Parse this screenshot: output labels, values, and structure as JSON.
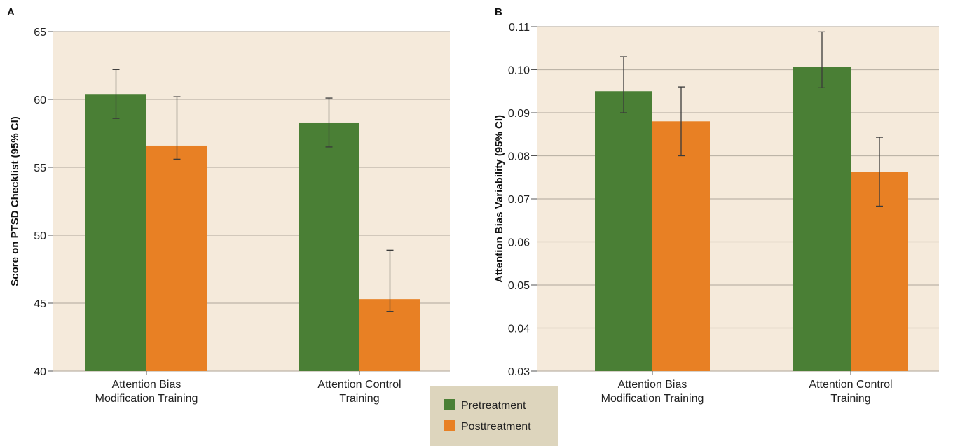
{
  "colors": {
    "plot_bg": "#f5eadb",
    "grid": "#bdb5a8",
    "pretreatment": "#4a7f35",
    "posttreatment": "#e88024",
    "legend_bg": "#ddd5bd",
    "error_bar": "#3a3a3a"
  },
  "legend": {
    "items": [
      {
        "label": "Pretreatment",
        "color_key": "pretreatment"
      },
      {
        "label": "Posttreatment",
        "color_key": "posttreatment"
      }
    ]
  },
  "chart_data": [
    {
      "panel": "A",
      "type": "bar",
      "ylabel": "Score on PTSD Checklist (95% CI)",
      "ylim": [
        40,
        65
      ],
      "yticks": [
        40,
        45,
        50,
        55,
        60,
        65
      ],
      "ytick_labels": [
        "40",
        "45",
        "50",
        "55",
        "60",
        "65"
      ],
      "grid": true,
      "categories": [
        [
          "Attention Bias",
          "Modification Training"
        ],
        [
          "Attention Control",
          "Training"
        ]
      ],
      "series": [
        {
          "name": "Pretreatment",
          "values": [
            60.4,
            58.3
          ],
          "ci_low": [
            58.6,
            56.5
          ],
          "ci_high": [
            62.2,
            60.1
          ]
        },
        {
          "name": "Posttreatment",
          "values": [
            56.6,
            45.3
          ],
          "ci_low": [
            55.6,
            44.4
          ],
          "ci_high": [
            60.2,
            48.9
          ]
        }
      ]
    },
    {
      "panel": "B",
      "type": "bar",
      "ylabel": "Attention Bias Variability  (95% CI)",
      "ylim": [
        0.03,
        0.11
      ],
      "yticks": [
        0.03,
        0.04,
        0.05,
        0.06,
        0.07,
        0.08,
        0.09,
        0.1,
        0.11
      ],
      "ytick_labels": [
        "0.03",
        "0.04",
        "0.05",
        "0.06",
        "0.07",
        "0.08",
        "0.09",
        "0.10",
        "0.11"
      ],
      "grid": true,
      "categories": [
        [
          "Attention Bias",
          "Modification Training"
        ],
        [
          "Attention Control",
          "Training"
        ]
      ],
      "series": [
        {
          "name": "Pretreatment",
          "values": [
            0.095,
            0.1006
          ],
          "ci_low": [
            0.09,
            0.0958
          ],
          "ci_high": [
            0.103,
            0.1088
          ]
        },
        {
          "name": "Posttreatment",
          "values": [
            0.088,
            0.0762
          ],
          "ci_low": [
            0.08,
            0.0683
          ],
          "ci_high": [
            0.096,
            0.0843
          ]
        }
      ]
    }
  ]
}
